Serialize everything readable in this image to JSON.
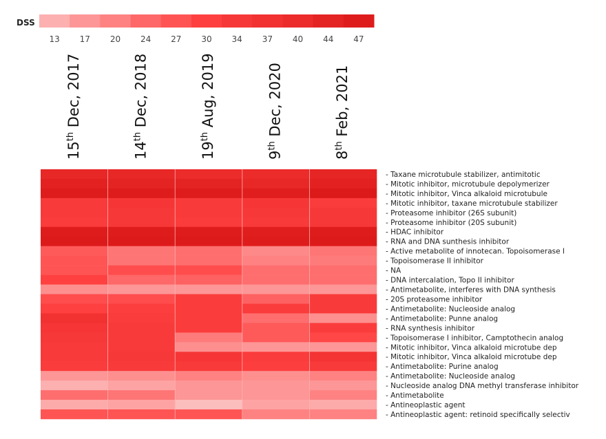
{
  "chart_data": {
    "type": "heatmap",
    "legend": {
      "title": "DSS",
      "ticks": [
        13,
        17,
        20,
        24,
        27,
        30,
        34,
        37,
        40,
        44,
        47
      ],
      "placement": "top",
      "color_low": "#fcc4c4",
      "color_mid": "#ff4040",
      "color_high": "#d91616"
    },
    "columns": [
      {
        "day": "15",
        "suffix": "th",
        "rest": " Dec, 2017"
      },
      {
        "day": "14",
        "suffix": "th",
        "rest": " Dec, 2018"
      },
      {
        "day": "19",
        "suffix": "th",
        "rest": " Aug, 2019"
      },
      {
        "day": "9",
        "suffix": "th",
        "rest": " Dec, 2020"
      },
      {
        "day": "8",
        "suffix": "th",
        "rest": " Feb, 2021"
      }
    ],
    "rows": [
      "- Taxane microtubule stabilizer, antimitotic",
      "- Mitotic inhibitor, microtubule depolymerizer",
      "- Mitotic inhibitor, Vinca alkaloid microtubule",
      "- Mitotic inhibitor, taxane microtubule stabilizer",
      "- Proteasome inhibitor (26S subunit)",
      "- Proteasome inhibitor (20S subunit)",
      "- HDAC inhibitor",
      "- RNA and DNA sunthesis inhibitor",
      "- Active metabolite of innotecan. Topoisomerase I",
      "- Topoisomerase II inhibitor",
      "- NA",
      "- DNA intercalation, Topo II inhibitor",
      "- Antimetabolite, interferes with DNA synthesis",
      "- 20S proteasome inhibitor",
      "- Antimetabolite: Nucleoside analog",
      "- Antimetabolite: Punne analog",
      "- RNA synthesis inhibitor",
      "- Topoisomerase I inhibitor, Camptothecin analog",
      "- Mitotic inhibitor, Vinca alkaloid microtube dep",
      "- Mitotic inhibitor, Vinca alkaloid microtube dep",
      "- Antimetabolite: Purine analog",
      "- Antimetabolite: Nucleoside analog",
      "- Nucleoside analog DNA methyl transferase inhibitor",
      "- Antimetabolite",
      "- Antineoplastic agent",
      "- Antineoplastic agent: retinoid specifically selectiv"
    ],
    "values": [
      [
        42,
        42,
        40,
        40,
        43
      ],
      [
        45,
        44,
        44,
        42,
        45
      ],
      [
        47,
        47,
        47,
        46,
        48
      ],
      [
        33,
        35,
        33,
        35,
        32
      ],
      [
        33,
        34,
        33,
        34,
        34
      ],
      [
        32,
        34,
        32,
        33,
        34
      ],
      [
        47,
        47,
        47,
        46,
        47
      ],
      [
        48,
        48,
        48,
        47,
        48
      ],
      [
        26,
        22,
        23,
        19,
        22
      ],
      [
        27,
        22,
        23,
        20,
        21
      ],
      [
        27,
        28,
        28,
        23,
        23
      ],
      [
        30,
        24,
        25,
        23,
        23
      ],
      [
        18,
        17,
        17,
        17,
        17
      ],
      [
        28,
        28,
        32,
        25,
        33
      ],
      [
        30,
        31,
        32,
        32,
        33
      ],
      [
        37,
        32,
        32,
        23,
        18
      ],
      [
        35,
        33,
        32,
        26,
        32
      ],
      [
        34,
        33,
        21,
        26,
        29
      ],
      [
        33,
        33,
        18,
        17,
        17
      ],
      [
        33,
        34,
        35,
        32,
        36
      ],
      [
        32,
        33,
        33,
        31,
        33
      ],
      [
        17,
        18,
        20,
        18,
        20
      ],
      [
        13,
        15,
        17,
        17,
        17
      ],
      [
        23,
        22,
        17,
        17,
        20
      ],
      [
        14,
        15,
        11,
        15,
        14
      ],
      [
        27,
        27,
        27,
        20,
        20
      ]
    ]
  }
}
